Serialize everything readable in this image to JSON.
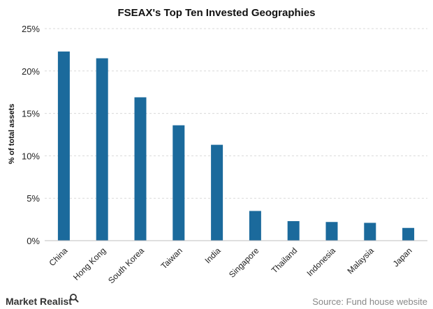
{
  "chart_data": {
    "type": "bar",
    "title": "FSEAX's Top Ten Invested Geographies",
    "ylabel": "% of total assets",
    "xlabel": "",
    "categories": [
      "China",
      "Hong Kong",
      "South Korea",
      "Taiwan",
      "India",
      "Singapore",
      "Thailand",
      "Indonesia",
      "Malaysia",
      "Japan"
    ],
    "values": [
      22.3,
      21.5,
      16.9,
      13.6,
      11.3,
      3.5,
      2.3,
      2.2,
      2.1,
      1.5
    ],
    "ylim": [
      0,
      25
    ],
    "yticks": [
      0,
      5,
      10,
      15,
      20,
      25
    ],
    "ytick_labels": [
      "0%",
      "5%",
      "10%",
      "15%",
      "20%",
      "25%"
    ],
    "grid": true,
    "bar_color": "#1b6a9c"
  },
  "branding": {
    "logo_text": "Market Realist",
    "logo_icon": "magnifier-icon"
  },
  "source": {
    "text": "Source: Fund house website"
  }
}
